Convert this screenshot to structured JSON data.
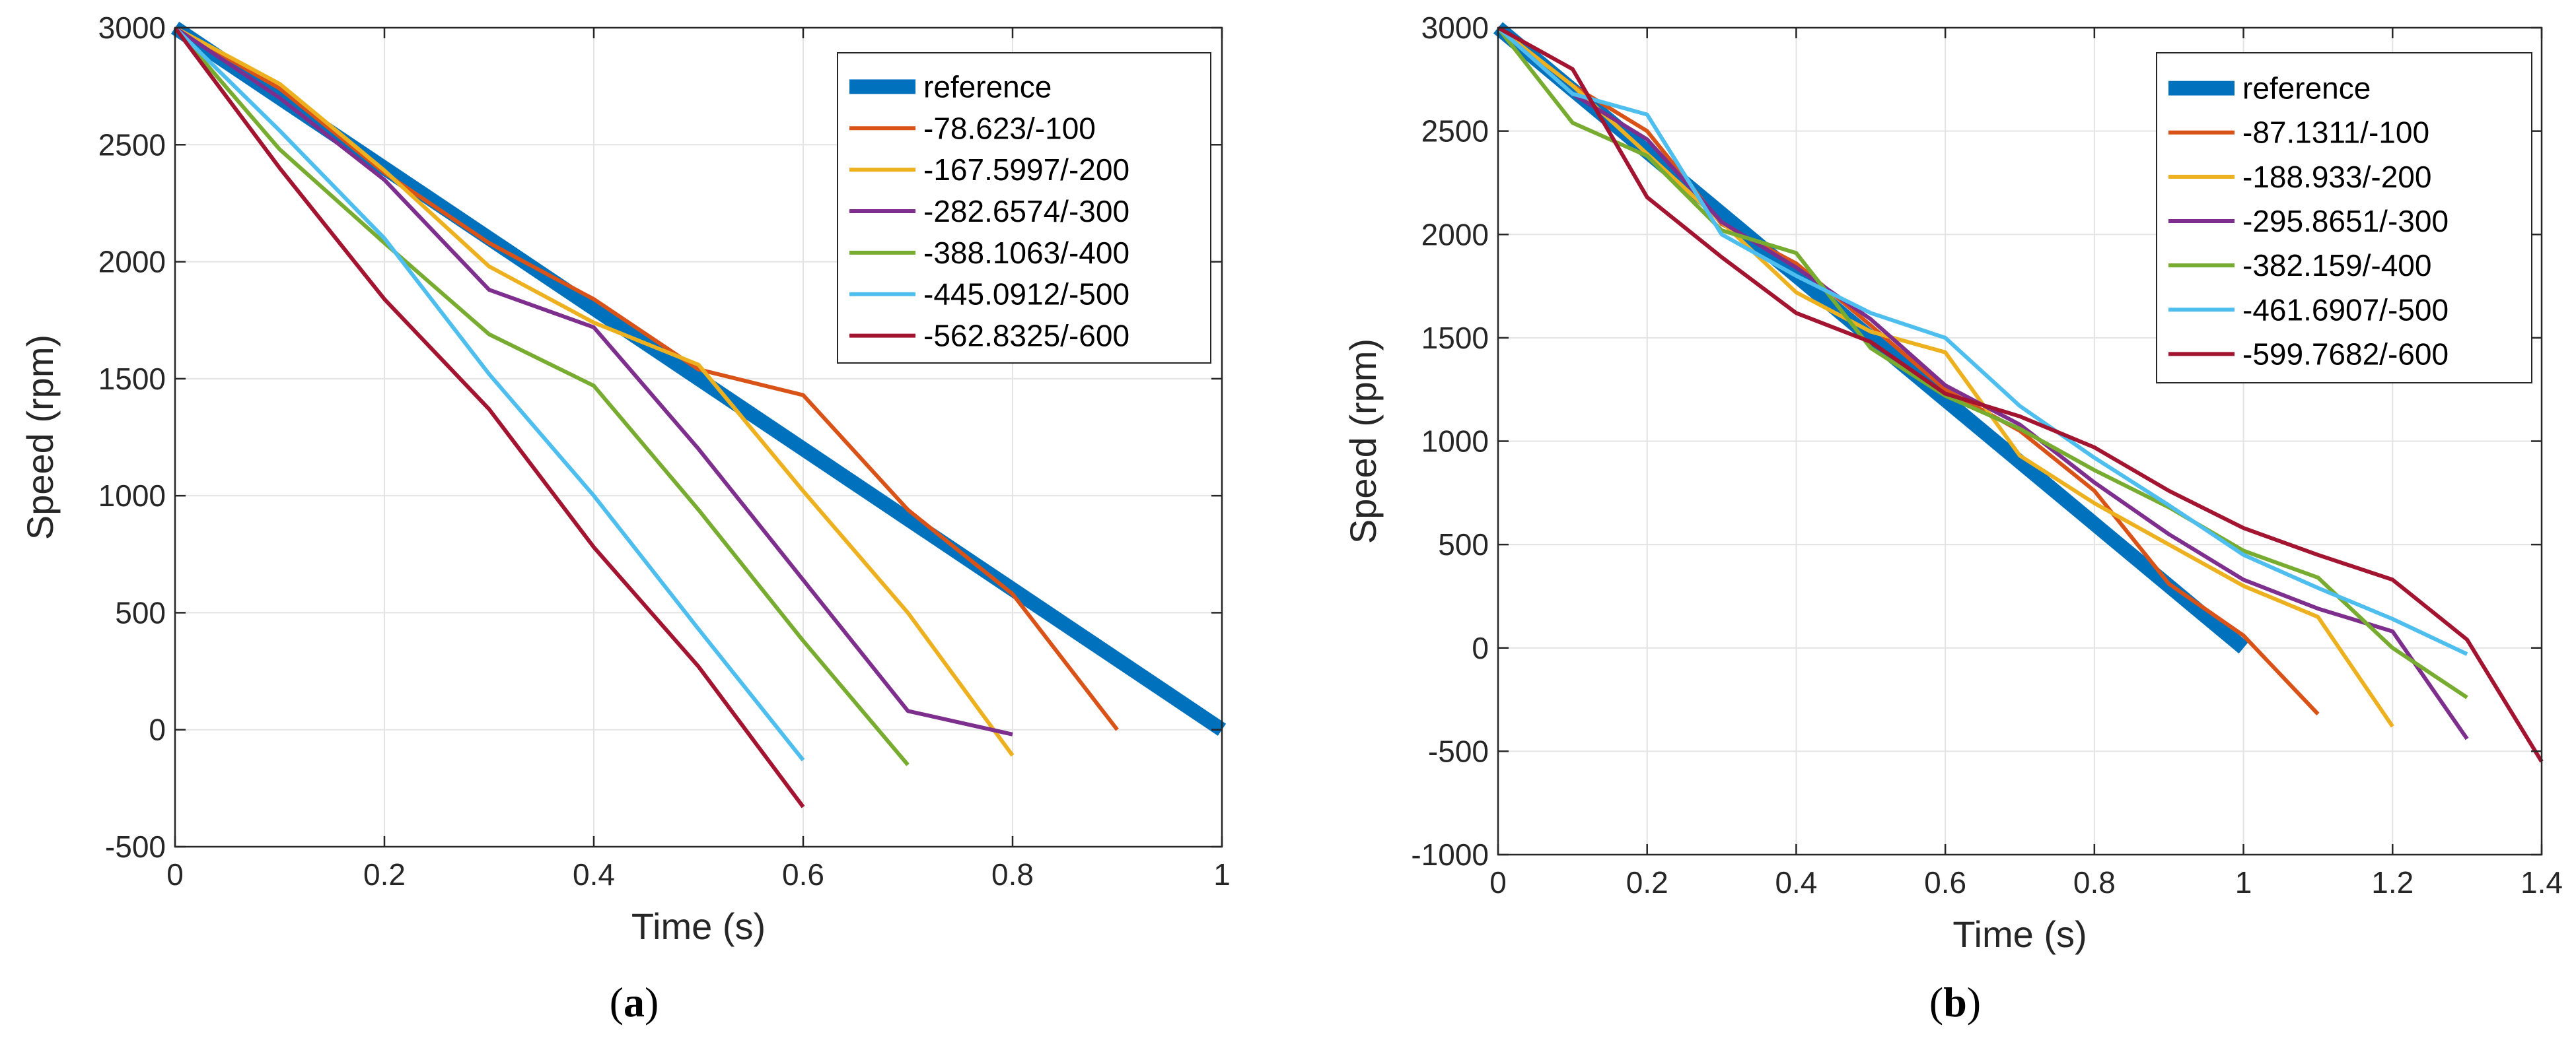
{
  "chart_data": [
    {
      "type": "line",
      "caption": "a",
      "xlabel": "Time (s)",
      "ylabel": "Speed (rpm)",
      "xlim": [
        0,
        1
      ],
      "ylim": [
        -500,
        3000
      ],
      "xticks": [
        0,
        0.2,
        0.4,
        0.6,
        0.8,
        1
      ],
      "xtick_labels": [
        "0",
        "0.2",
        "0.4",
        "0.6",
        "0.8",
        "1"
      ],
      "yticks": [
        -500,
        0,
        500,
        1000,
        1500,
        2000,
        2500,
        3000
      ],
      "ytick_labels": [
        "-500",
        "0",
        "500",
        "1000",
        "1500",
        "2000",
        "2500",
        "3000"
      ],
      "grid": true,
      "legend_position": "top-right",
      "series": [
        {
          "name": "reference",
          "color": "#0072BD",
          "thick": true,
          "x": [
            0,
            1
          ],
          "y": [
            3000,
            0
          ]
        },
        {
          "name": "-78.623/-100",
          "color": "#D95319",
          "x": [
            0,
            0.1,
            0.2,
            0.3,
            0.4,
            0.5,
            0.6,
            0.7,
            0.8,
            0.9
          ],
          "y": [
            3000,
            2740,
            2380,
            2080,
            1840,
            1540,
            1430,
            940,
            580,
            0
          ]
        },
        {
          "name": "-167.5997/-200",
          "color": "#EDB120",
          "x": [
            0,
            0.1,
            0.2,
            0.3,
            0.4,
            0.5,
            0.6,
            0.7,
            0.8
          ],
          "y": [
            3000,
            2760,
            2390,
            1980,
            1740,
            1560,
            1020,
            500,
            -110
          ]
        },
        {
          "name": "-282.6574/-300",
          "color": "#7E2F8E",
          "x": [
            0,
            0.1,
            0.2,
            0.3,
            0.4,
            0.5,
            0.6,
            0.7,
            0.8
          ],
          "y": [
            3000,
            2700,
            2350,
            1880,
            1720,
            1200,
            640,
            80,
            -20
          ]
        },
        {
          "name": "-388.1063/-400",
          "color": "#77AC30",
          "x": [
            0,
            0.1,
            0.2,
            0.3,
            0.4,
            0.5,
            0.6,
            0.7
          ],
          "y": [
            3000,
            2480,
            2080,
            1690,
            1470,
            940,
            380,
            -150
          ]
        },
        {
          "name": "-445.0912/-500",
          "color": "#4DBEEE",
          "x": [
            0,
            0.1,
            0.2,
            0.3,
            0.4,
            0.5,
            0.6
          ],
          "y": [
            3000,
            2560,
            2100,
            1520,
            1000,
            430,
            -130
          ]
        },
        {
          "name": "-562.8325/-600",
          "color": "#A2142F",
          "x": [
            0,
            0.1,
            0.2,
            0.3,
            0.4,
            0.5,
            0.6
          ],
          "y": [
            3000,
            2400,
            1840,
            1370,
            780,
            270,
            -330
          ]
        }
      ]
    },
    {
      "type": "line",
      "caption": "b",
      "xlabel": "Time (s)",
      "ylabel": "Speed (rpm)",
      "xlim": [
        0,
        1.4
      ],
      "ylim": [
        -1000,
        3000
      ],
      "xticks": [
        0,
        0.2,
        0.4,
        0.6,
        0.8,
        1,
        1.2,
        1.4
      ],
      "xtick_labels": [
        "0",
        "0.2",
        "0.4",
        "0.6",
        "0.8",
        "1",
        "1.2",
        "1.4"
      ],
      "yticks": [
        -1000,
        -500,
        0,
        500,
        1000,
        1500,
        2000,
        2500,
        3000
      ],
      "ytick_labels": [
        "-1000",
        "-500",
        "0",
        "500",
        "1000",
        "1500",
        "2000",
        "2500",
        "3000"
      ],
      "grid": true,
      "legend_position": "top-right",
      "series": [
        {
          "name": "reference",
          "color": "#0072BD",
          "thick": true,
          "x": [
            0,
            1
          ],
          "y": [
            3000,
            0
          ]
        },
        {
          "name": "-87.1311/-100",
          "color": "#D95319",
          "x": [
            0,
            0.1,
            0.2,
            0.3,
            0.4,
            0.5,
            0.6,
            0.7,
            0.8,
            0.9,
            1.0,
            1.1
          ],
          "y": [
            3000,
            2720,
            2500,
            2050,
            1860,
            1560,
            1250,
            1050,
            760,
            310,
            60,
            -320
          ]
        },
        {
          "name": "-188.933/-200",
          "color": "#EDB120",
          "x": [
            0,
            0.1,
            0.2,
            0.3,
            0.4,
            0.5,
            0.6,
            0.7,
            0.8,
            0.9,
            1.0,
            1.1,
            1.2
          ],
          "y": [
            3000,
            2720,
            2390,
            2060,
            1720,
            1530,
            1430,
            930,
            700,
            500,
            300,
            150,
            -380
          ]
        },
        {
          "name": "-295.8651/-300",
          "color": "#7E2F8E",
          "x": [
            0,
            0.1,
            0.2,
            0.3,
            0.4,
            0.5,
            0.6,
            0.7,
            0.8,
            0.9,
            1.0,
            1.1,
            1.2,
            1.3
          ],
          "y": [
            3000,
            2680,
            2460,
            2060,
            1840,
            1590,
            1270,
            1080,
            800,
            550,
            330,
            190,
            80,
            -440
          ]
        },
        {
          "name": "-382.159/-400",
          "color": "#77AC30",
          "x": [
            0,
            0.1,
            0.2,
            0.3,
            0.4,
            0.5,
            0.6,
            0.7,
            0.8,
            0.9,
            1.0,
            1.1,
            1.2,
            1.3
          ],
          "y": [
            3000,
            2540,
            2380,
            2020,
            1910,
            1450,
            1220,
            1060,
            860,
            680,
            470,
            340,
            0,
            -240
          ]
        },
        {
          "name": "-461.6907/-500",
          "color": "#4DBEEE",
          "x": [
            0,
            0.1,
            0.2,
            0.3,
            0.4,
            0.5,
            0.6,
            0.7,
            0.8,
            0.9,
            1.0,
            1.1,
            1.2,
            1.3
          ],
          "y": [
            3000,
            2680,
            2580,
            2000,
            1800,
            1620,
            1500,
            1170,
            920,
            690,
            450,
            290,
            140,
            -30
          ]
        },
        {
          "name": "-599.7682/-600",
          "color": "#A2142F",
          "x": [
            0,
            0.1,
            0.2,
            0.3,
            0.4,
            0.5,
            0.6,
            0.7,
            0.8,
            0.9,
            1.0,
            1.1,
            1.2,
            1.3,
            1.4
          ],
          "y": [
            3000,
            2800,
            2180,
            1890,
            1620,
            1480,
            1230,
            1120,
            970,
            760,
            580,
            450,
            330,
            40,
            -550
          ]
        }
      ]
    }
  ]
}
